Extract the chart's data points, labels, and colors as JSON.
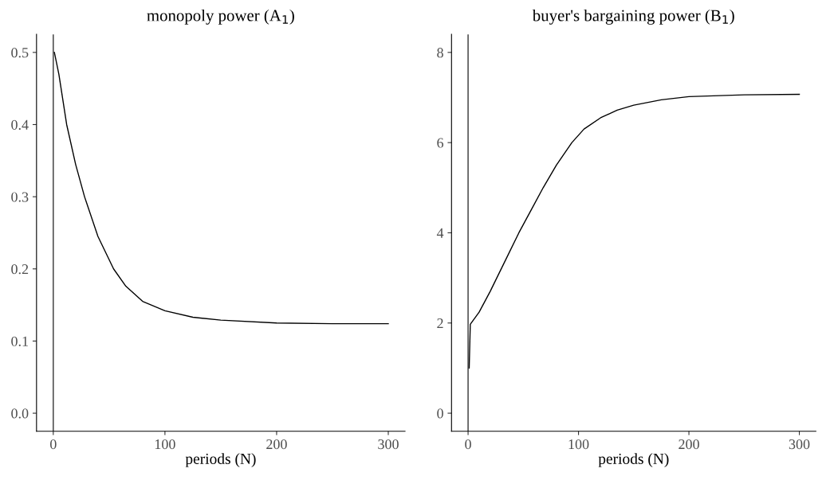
{
  "chart_data": [
    {
      "type": "line",
      "title": "monopoly power (A$_{1}$)",
      "xlabel": "periods (N)",
      "x": [
        1,
        5,
        12,
        20,
        28,
        40,
        54,
        65,
        80,
        100,
        125,
        150,
        200,
        250,
        300
      ],
      "series": [
        {
          "color": "#000000",
          "values": [
            0.5,
            0.47,
            0.4,
            0.345,
            0.3,
            0.245,
            0.2,
            0.176,
            0.155,
            0.142,
            0.133,
            0.129,
            0.125,
            0.124,
            0.124
          ]
        }
      ],
      "xlim": [
        -15,
        315
      ],
      "xticks": [
        0,
        100,
        200,
        300
      ],
      "ylim": [
        -0.025,
        0.525
      ],
      "yticks": [
        {
          "value": 0,
          "label": "0.0"
        },
        0.1,
        0.2,
        0.3,
        0.4,
        0.5
      ],
      "ref_lines": [
        {
          "axis": "x",
          "value": 0,
          "color": "#333333"
        }
      ]
    },
    {
      "type": "line",
      "title": "buyer's bargaining power (B$_{1}$)",
      "xlabel": "periods (N)",
      "x": [
        1,
        2,
        10,
        20,
        26,
        35,
        46,
        57,
        68,
        80,
        94,
        105,
        120,
        135,
        150,
        175,
        200,
        250,
        300
      ],
      "series": [
        {
          "color": "#000000",
          "values": [
            1.0,
            1.97,
            2.24,
            2.7,
            3.0,
            3.45,
            4.0,
            4.5,
            5.0,
            5.5,
            6.0,
            6.3,
            6.55,
            6.72,
            6.83,
            6.95,
            7.02,
            7.06,
            7.07
          ]
        }
      ],
      "xlim": [
        -15,
        315
      ],
      "xticks": [
        0,
        100,
        200,
        300
      ],
      "ylim": [
        -0.4,
        8.4
      ],
      "yticks": [
        0,
        2,
        4,
        6,
        8
      ],
      "ref_lines": [
        {
          "axis": "x",
          "value": 0,
          "color": "#333333"
        }
      ]
    }
  ]
}
